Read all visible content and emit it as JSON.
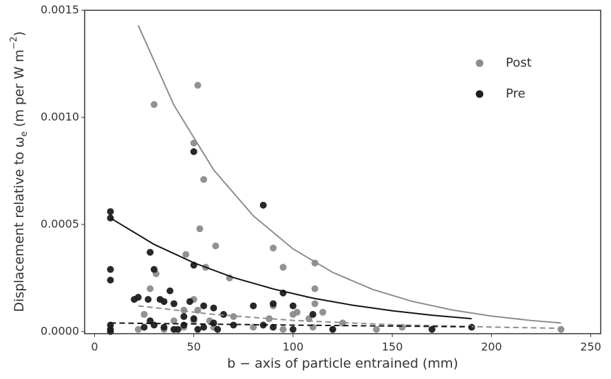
{
  "chart_data": {
    "type": "scatter",
    "xlabel": "b − axis of particle entrained (mm)",
    "ylabel_parts": [
      "Displacement relative to ω",
      "e",
      " (m per W m",
      "−2",
      ")"
    ],
    "xlim": [
      -5,
      255
    ],
    "ylim": [
      -1e-05,
      0.0015
    ],
    "xticks": [
      0,
      50,
      100,
      150,
      200,
      250
    ],
    "yticks": [
      {
        "value": 0,
        "label": "0.0000"
      },
      {
        "value": 0.0005,
        "label": "0.0005"
      },
      {
        "value": 0.001,
        "label": "0.0010"
      },
      {
        "value": 0.0015,
        "label": "0.0015"
      }
    ],
    "legend": "top right",
    "series": [
      {
        "name": "Post",
        "color": "#8c8c8c",
        "x": [
          30,
          52,
          50,
          55,
          53,
          61,
          46,
          56,
          31,
          90,
          95,
          111,
          111,
          111,
          68,
          28,
          50,
          90,
          25,
          40,
          45,
          52,
          58,
          70,
          88,
          100,
          102,
          108,
          115,
          125,
          142,
          155,
          235,
          22,
          35,
          45,
          60,
          80,
          95,
          110,
          120,
          50
        ],
        "values": [
          0.00106,
          0.00115,
          0.00088,
          0.00071,
          0.00048,
          0.0004,
          0.00036,
          0.0003,
          0.00027,
          0.00039,
          0.0003,
          0.00032,
          0.0002,
          0.00013,
          0.00025,
          0.0002,
          0.00015,
          0.00012,
          8e-05,
          5e-05,
          0.0001,
          0.0001,
          5e-05,
          7e-05,
          6e-05,
          8e-05,
          9e-05,
          6e-05,
          9e-05,
          4e-05,
          1e-05,
          2e-05,
          1e-05,
          1e-05,
          1e-05,
          2e-05,
          2e-05,
          2e-05,
          1e-05,
          2e-05,
          1e-05,
          5e-05
        ]
      },
      {
        "name": "Pre",
        "color": "#1e1e1e",
        "x": [
          8,
          8,
          8,
          8,
          8,
          8,
          8,
          50,
          85,
          28,
          30,
          50,
          38,
          95,
          90,
          80,
          100,
          110,
          20,
          22,
          27,
          33,
          35,
          40,
          48,
          55,
          60,
          65,
          45,
          28,
          30,
          35,
          40,
          45,
          50,
          55,
          60,
          70,
          85,
          90,
          100,
          120,
          170,
          190,
          25,
          52,
          62,
          42
        ],
        "values": [
          0.00056,
          0.00053,
          0.00029,
          0.00024,
          3e-05,
          1e-05,
          0,
          0.00084,
          0.00059,
          0.00037,
          0.00029,
          0.00031,
          0.00019,
          0.00018,
          0.00013,
          0.00012,
          0.00012,
          8e-05,
          0.00015,
          0.00016,
          0.00015,
          0.00015,
          0.00014,
          0.00013,
          0.00014,
          0.00012,
          0.00011,
          8e-05,
          7e-05,
          5e-05,
          3e-05,
          2e-05,
          1e-05,
          3e-05,
          6e-05,
          2e-05,
          4e-05,
          3e-05,
          3e-05,
          2e-05,
          1e-05,
          1e-05,
          1e-05,
          2e-05,
          2e-05,
          1e-05,
          1e-05,
          1e-05
        ]
      }
    ],
    "fits": [
      {
        "color": "#8c8c8c",
        "dash": false,
        "x": [
          22,
          40,
          60,
          80,
          100,
          120,
          140,
          160,
          180,
          200,
          220,
          235
        ],
        "values": [
          0.00143,
          0.001057,
          0.000755,
          0.00054,
          0.000386,
          0.000276,
          0.000197,
          0.000141,
          0.000101,
          7.2e-05,
          5.15e-05,
          4e-05
        ]
      },
      {
        "color": "#111111",
        "dash": false,
        "x": [
          8,
          30,
          50,
          70,
          90,
          110,
          130,
          150,
          170,
          190
        ],
        "values": [
          0.00053,
          0.000407,
          0.000321,
          0.000252,
          0.000199,
          0.000156,
          0.000123,
          9.7e-05,
          7.6e-05,
          6e-05
        ]
      },
      {
        "color": "#8c8c8c",
        "dash": true,
        "x": [
          22,
          60,
          100,
          150,
          200,
          235
        ],
        "values": [
          0.00012,
          8e-05,
          5.2e-05,
          3.2e-05,
          2.1e-05,
          1.5e-05
        ]
      },
      {
        "color": "#111111",
        "dash": true,
        "x": [
          8,
          100,
          190
        ],
        "values": [
          4e-05,
          3e-05,
          2.2e-05
        ]
      }
    ]
  }
}
